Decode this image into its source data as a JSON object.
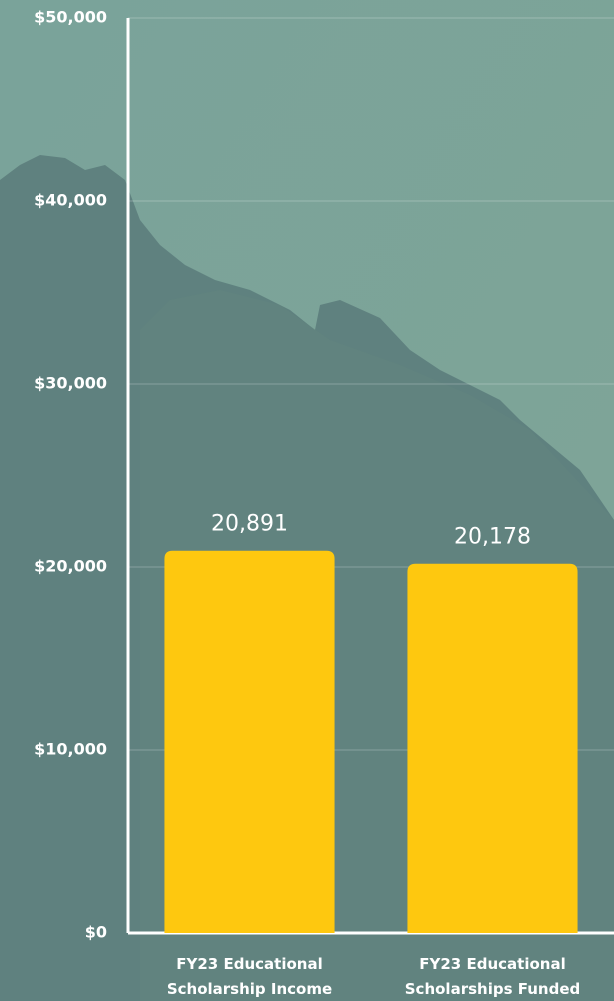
{
  "chart_data": {
    "type": "bar",
    "categories": [
      "FY23 Educational Scholarship Income",
      "FY23 Educational Scholarships Funded"
    ],
    "values": [
      20891,
      20178
    ],
    "value_labels": [
      "20,891",
      "20,178"
    ],
    "color": "#fec80f",
    "ylim": [
      0,
      50000
    ],
    "yticks": [
      {
        "value": 0,
        "label": "$0"
      },
      {
        "value": 10000,
        "label": "$10,000"
      },
      {
        "value": 20000,
        "label": "$20,000"
      },
      {
        "value": 30000,
        "label": "$30,000"
      },
      {
        "value": 40000,
        "label": "$40,000"
      },
      {
        "value": 50000,
        "label": "$50,000"
      }
    ],
    "grid": true
  }
}
